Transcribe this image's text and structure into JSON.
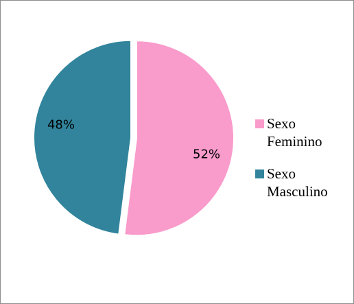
{
  "chart_data": {
    "type": "pie",
    "categories": [
      "Sexo Feminino",
      "Sexo Masculino"
    ],
    "values": [
      52,
      48
    ],
    "value_labels": [
      "52%",
      "48%"
    ],
    "colors": [
      "#f99bcb",
      "#31849b"
    ]
  }
}
